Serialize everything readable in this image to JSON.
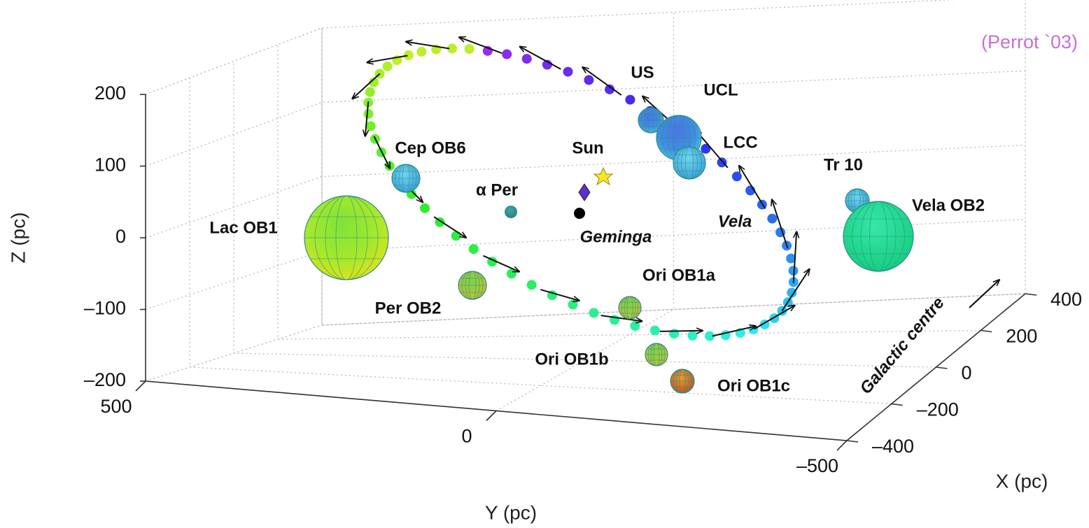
{
  "chart_data": {
    "type": "scatter3d",
    "credit": "(Perrot `03)",
    "zlabel": "Z (pc)",
    "ylabel": "Y (pc)",
    "xlabel": "X (pc)",
    "direction_label": "Galactic centre",
    "zlim": [
      -200,
      200
    ],
    "zticks": [
      {
        "value": -200,
        "label": "–200"
      },
      {
        "value": -100,
        "label": "–100"
      },
      0,
      100,
      200
    ],
    "ylim": [
      500,
      -500
    ],
    "yticks": [
      500,
      0,
      {
        "value": -500,
        "label": "–500"
      }
    ],
    "xlim": [
      -400,
      400
    ],
    "xticks": [
      {
        "value": -400,
        "label": "–400"
      },
      {
        "value": -200,
        "label": "–200"
      },
      0,
      200,
      400
    ],
    "labels": [
      "US",
      "UCL",
      "LCC",
      "Tr 10",
      "Vela OB2",
      "Vela",
      "Cep OB6",
      "Sun",
      "α Per",
      "Geminga",
      "Lac OB1",
      "Per OB2",
      "Ori OB1a",
      "Ori OB1b",
      "Ori OB1c"
    ]
  }
}
